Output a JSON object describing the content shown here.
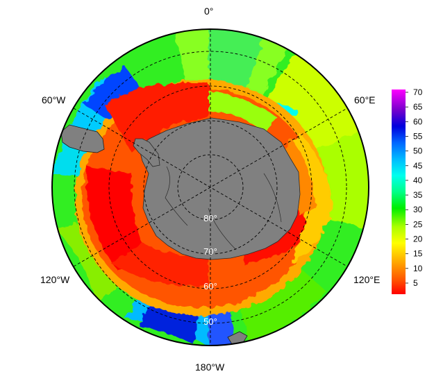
{
  "map": {
    "projection": "south-polar-stereographic",
    "longitude_labels": {
      "top": "0°",
      "upper_left": "60°W",
      "upper_right": "60°E",
      "lower_left": "120°W",
      "lower_right": "120°E",
      "bottom": "180°W"
    },
    "latitude_labels": [
      "80°",
      "70°",
      "60°",
      "50°"
    ],
    "land_color": "#808080",
    "background_color": "#ffffff"
  },
  "colorbar": {
    "ticks": [
      "70",
      "65",
      "60",
      "55",
      "50",
      "45",
      "40",
      "35",
      "30",
      "25",
      "20",
      "15",
      "10",
      "5"
    ],
    "min": 0,
    "max": 72,
    "colors": [
      "#ff0000",
      "#ff4400",
      "#ff8800",
      "#ffcc00",
      "#ffff00",
      "#ccff00",
      "#66ff00",
      "#00ff00",
      "#00ff66",
      "#00ffcc",
      "#00ffff",
      "#00ccff",
      "#0088ff",
      "#0033ff",
      "#0000cc",
      "#6600cc",
      "#cc00ff",
      "#ff00ff"
    ]
  }
}
